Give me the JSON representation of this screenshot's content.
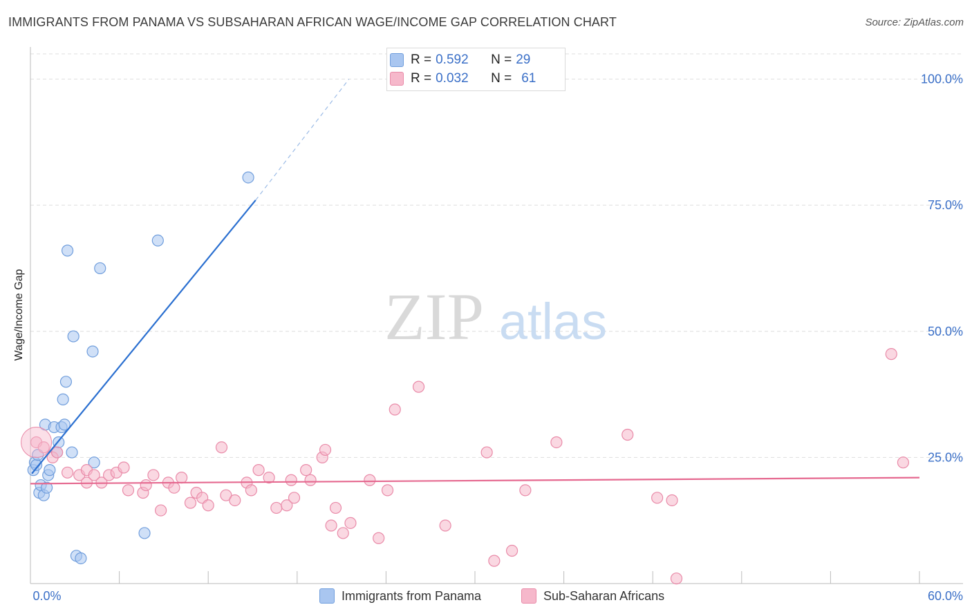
{
  "title": "IMMIGRANTS FROM PANAMA VS SUBSAHARAN AFRICAN WAGE/INCOME GAP CORRELATION CHART",
  "source": "Source: ZipAtlas.com",
  "watermark": {
    "zip": "ZIP",
    "atlas": "atlas"
  },
  "legend_top": {
    "rows": [
      {
        "r_label": "R = ",
        "r_value": "0.592",
        "n_label": "N = ",
        "n_value": "29",
        "color": "#a9c6f0"
      },
      {
        "r_label": "R = ",
        "r_value": "0.032",
        "n_label": "N = ",
        "n_value": "61",
        "color": "#f6b8cb"
      }
    ]
  },
  "legend_bottom": [
    {
      "label": "Immigrants from Panama",
      "color": "#a9c6f0"
    },
    {
      "label": "Sub-Saharan Africans",
      "color": "#f6b8cb"
    }
  ],
  "chart_data": {
    "type": "scatter",
    "title": "IMMIGRANTS FROM PANAMA VS SUBSAHARAN AFRICAN WAGE/INCOME GAP CORRELATION CHART",
    "xlabel": "",
    "ylabel": "Wage/Income Gap",
    "xlim": [
      0,
      60
    ],
    "ylim": [
      0,
      105
    ],
    "x_tick_labels": [
      "0.0%",
      "60.0%"
    ],
    "y_tick_labels": [
      "25.0%",
      "50.0%",
      "75.0%",
      "100.0%"
    ],
    "y_ticks": [
      25,
      50,
      75,
      100
    ],
    "grid": true,
    "series": [
      {
        "name": "Immigrants from Panama",
        "color": "#a9c6f0",
        "stroke": "#6f9ddc",
        "trend_color": "#2a6fd0",
        "trend": {
          "x0": 0.1,
          "y0": 21.8,
          "x1": 15.2,
          "y1": 76.0,
          "dash_x1": 21.5,
          "dash_y1": 100.0
        },
        "points": [
          [
            0.2,
            22.5
          ],
          [
            0.3,
            24.0
          ],
          [
            0.4,
            23.5
          ],
          [
            0.5,
            25.5
          ],
          [
            0.6,
            18.0
          ],
          [
            0.7,
            19.5
          ],
          [
            0.9,
            17.5
          ],
          [
            1.0,
            31.5
          ],
          [
            1.1,
            19.0
          ],
          [
            1.2,
            21.5
          ],
          [
            1.3,
            22.5
          ],
          [
            1.6,
            31.0
          ],
          [
            1.8,
            26.0
          ],
          [
            1.9,
            28.0
          ],
          [
            2.1,
            31.0
          ],
          [
            2.2,
            36.5
          ],
          [
            2.3,
            31.5
          ],
          [
            2.4,
            40.0
          ],
          [
            2.5,
            66.0
          ],
          [
            2.8,
            26.0
          ],
          [
            2.9,
            49.0
          ],
          [
            3.1,
            5.5
          ],
          [
            3.4,
            5.0
          ],
          [
            4.2,
            46.0
          ],
          [
            4.3,
            24.0
          ],
          [
            4.7,
            62.5
          ],
          [
            7.7,
            10.0
          ],
          [
            8.6,
            68.0
          ],
          [
            14.7,
            80.5
          ]
        ]
      },
      {
        "name": "Sub-Saharan Africans",
        "color": "#f6b8cb",
        "stroke": "#e98aa8",
        "trend_color": "#e5688f",
        "trend": {
          "x0": 0.0,
          "y0": 19.8,
          "x1": 60.0,
          "y1": 21.0
        },
        "points": [
          [
            0.4,
            28.0
          ],
          [
            0.9,
            27.0
          ],
          [
            1.5,
            25.0
          ],
          [
            1.8,
            26.0
          ],
          [
            2.5,
            22.0
          ],
          [
            3.3,
            21.5
          ],
          [
            3.8,
            22.5
          ],
          [
            3.8,
            20.0
          ],
          [
            4.3,
            21.5
          ],
          [
            4.8,
            20.0
          ],
          [
            5.3,
            21.5
          ],
          [
            5.8,
            22.0
          ],
          [
            6.3,
            23.0
          ],
          [
            6.6,
            18.5
          ],
          [
            7.6,
            18.0
          ],
          [
            7.8,
            19.5
          ],
          [
            8.3,
            21.5
          ],
          [
            8.8,
            14.5
          ],
          [
            9.3,
            20.0
          ],
          [
            9.7,
            19.0
          ],
          [
            10.2,
            21.0
          ],
          [
            10.8,
            16.0
          ],
          [
            11.2,
            18.0
          ],
          [
            11.6,
            17.0
          ],
          [
            12.0,
            15.5
          ],
          [
            12.9,
            27.0
          ],
          [
            13.2,
            17.5
          ],
          [
            13.8,
            16.5
          ],
          [
            14.6,
            20.0
          ],
          [
            14.9,
            18.5
          ],
          [
            15.4,
            22.5
          ],
          [
            16.1,
            21.0
          ],
          [
            16.6,
            15.0
          ],
          [
            17.3,
            15.5
          ],
          [
            17.6,
            20.5
          ],
          [
            17.8,
            17.0
          ],
          [
            18.9,
            20.5
          ],
          [
            18.6,
            22.5
          ],
          [
            19.7,
            25.0
          ],
          [
            19.9,
            26.5
          ],
          [
            20.3,
            11.5
          ],
          [
            20.6,
            15.0
          ],
          [
            21.1,
            10.0
          ],
          [
            21.6,
            12.0
          ],
          [
            22.9,
            20.5
          ],
          [
            23.5,
            9.0
          ],
          [
            24.1,
            18.5
          ],
          [
            24.6,
            34.5
          ],
          [
            26.2,
            39.0
          ],
          [
            28.0,
            11.5
          ],
          [
            30.8,
            26.0
          ],
          [
            31.3,
            4.5
          ],
          [
            32.5,
            6.5
          ],
          [
            33.4,
            18.5
          ],
          [
            35.5,
            28.0
          ],
          [
            40.3,
            29.5
          ],
          [
            42.3,
            17.0
          ],
          [
            43.3,
            16.5
          ],
          [
            43.6,
            1.0
          ],
          [
            58.1,
            45.5
          ],
          [
            58.9,
            24.0
          ]
        ]
      }
    ]
  }
}
